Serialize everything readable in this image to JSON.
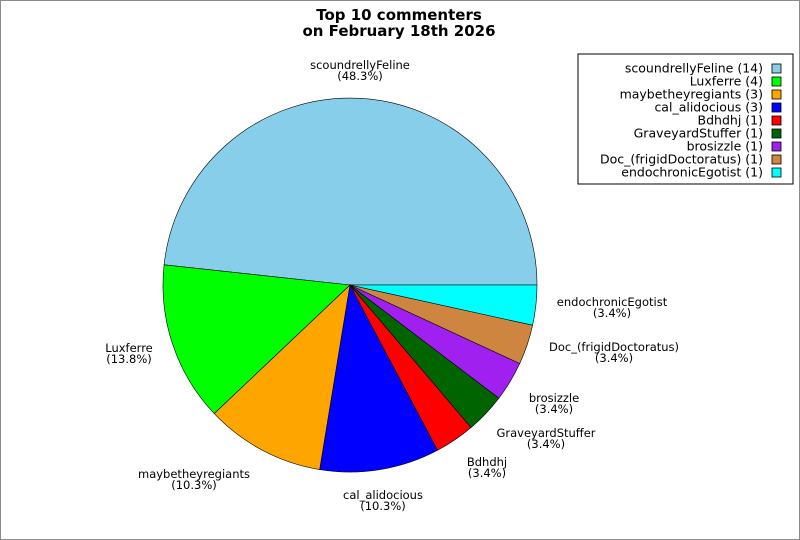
{
  "chart_data": {
    "type": "pie",
    "title": "Top 10 commenters\non February 18th 2026",
    "legend": "top-right",
    "slices": [
      {
        "name": "scoundrellyFeline",
        "value": 14,
        "percent": "(48.3%)",
        "legend": "scoundrellyFeline (14)",
        "color": "#87ceeb"
      },
      {
        "name": "Luxferre",
        "value": 4,
        "percent": "(13.8%)",
        "legend": "Luxferre (4)",
        "color": "#00ff00"
      },
      {
        "name": "maybetheyregiants",
        "value": 3,
        "percent": "(10.3%)",
        "legend": "maybetheyregiants (3)",
        "color": "#ffa500"
      },
      {
        "name": "cal_alidocious",
        "value": 3,
        "percent": "(10.3%)",
        "legend": "cal_alidocious (3)",
        "color": "#0000ff"
      },
      {
        "name": "Bdhdhj",
        "value": 1,
        "percent": "(3.4%)",
        "legend": "Bdhdhj (1)",
        "color": "#ff0000"
      },
      {
        "name": "GraveyardStuffer",
        "value": 1,
        "percent": "(3.4%)",
        "legend": "GraveyardStuffer (1)",
        "color": "#006400"
      },
      {
        "name": "brosizzle",
        "value": 1,
        "percent": "(3.4%)",
        "legend": "brosizzle (1)",
        "color": "#a020f0"
      },
      {
        "name": "Doc_(frigidDoctoratus)",
        "value": 1,
        "percent": "(3.4%)",
        "legend": "Doc_(frigidDoctoratus) (1)",
        "color": "#cd853f"
      },
      {
        "name": "endochronicEgotist",
        "value": 1,
        "percent": "(3.4%)",
        "legend": "endochronicEgotist (1)",
        "color": "#00ffff"
      }
    ]
  }
}
